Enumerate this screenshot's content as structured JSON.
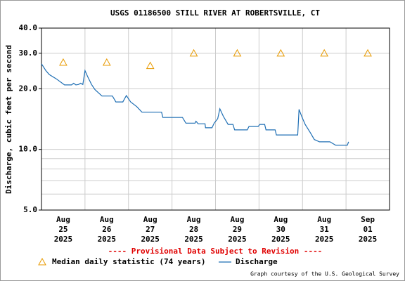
{
  "chart_data": {
    "type": "line",
    "title": "USGS 01186500 STILL RIVER AT ROBERTSVILLE, CT",
    "y_label": "Discharge, cubic feet per second",
    "notice": "---- Provisional Data Subject to Revision ----",
    "credit": "Graph courtesy of the U.S. Geological Survey",
    "log_y": true,
    "grid": true,
    "xlim": [
      0,
      8
    ],
    "xticks": [
      {
        "value": 0.5,
        "label": "Aug\n25\n2025"
      },
      {
        "value": 1.5,
        "label": "Aug\n26\n2025"
      },
      {
        "value": 2.5,
        "label": "Aug\n27\n2025"
      },
      {
        "value": 3.5,
        "label": "Aug\n28\n2025"
      },
      {
        "value": 4.5,
        "label": "Aug\n29\n2025"
      },
      {
        "value": 5.5,
        "label": "Aug\n30\n2025"
      },
      {
        "value": 6.5,
        "label": "Aug\n31\n2025"
      },
      {
        "value": 7.5,
        "label": "Sep\n01\n2025"
      }
    ],
    "xgrid": [
      1,
      2,
      3,
      4,
      5,
      6,
      7
    ],
    "ylim": [
      5,
      40
    ],
    "yticks": [
      {
        "value": 5,
        "label": "5.0"
      },
      {
        "value": 10,
        "label": "10.0"
      },
      {
        "value": 20,
        "label": "20.0"
      },
      {
        "value": 30,
        "label": "30.0"
      },
      {
        "value": 40,
        "label": "40.0"
      }
    ],
    "yminor": [
      6,
      7,
      8,
      9
    ],
    "series": [
      {
        "name": "Median daily statistic (74 years)",
        "color": "#e89a00",
        "marker": "triangle",
        "x": [
          0.5,
          1.5,
          2.5,
          3.5,
          4.5,
          5.5,
          6.5,
          7.5
        ],
        "values": [
          27,
          27,
          26,
          30,
          30,
          30,
          30,
          30
        ]
      },
      {
        "name": "Discharge",
        "color": "#1f6fb4",
        "marker": "none",
        "x": [
          0,
          0.1,
          0.18,
          0.34,
          0.53,
          0.69,
          0.74,
          0.79,
          0.85,
          0.9,
          0.95,
          1.0,
          1.06,
          1.15,
          1.23,
          1.39,
          1.63,
          1.71,
          1.87,
          1.95,
          2.05,
          2.19,
          2.31,
          2.76,
          2.79,
          3.24,
          3.32,
          3.53,
          3.55,
          3.6,
          3.76,
          3.77,
          3.92,
          3.97,
          4.05,
          4.1,
          4.18,
          4.29,
          4.4,
          4.44,
          4.73,
          4.77,
          4.98,
          5.02,
          5.13,
          5.16,
          5.37,
          5.4,
          5.89,
          5.92,
          5.98,
          6.06,
          6.18,
          6.27,
          6.39,
          6.63,
          6.76,
          7.03,
          7.06
        ],
        "values": [
          26.6,
          24.6,
          23.5,
          22.4,
          20.9,
          20.9,
          21.3,
          20.9,
          21.0,
          21.3,
          21.0,
          24.6,
          23.0,
          21.0,
          19.8,
          18.4,
          18.4,
          17.2,
          17.2,
          18.5,
          17.2,
          16.3,
          15.3,
          15.3,
          14.4,
          14.4,
          13.5,
          13.5,
          13.8,
          13.4,
          13.4,
          12.8,
          12.8,
          13.5,
          14.2,
          15.9,
          14.6,
          13.3,
          13.3,
          12.5,
          12.5,
          13.0,
          13.0,
          13.3,
          13.3,
          12.5,
          12.5,
          11.8,
          11.8,
          15.8,
          14.6,
          13.3,
          12.1,
          11.2,
          10.9,
          10.9,
          10.5,
          10.5,
          10.9
        ]
      }
    ]
  }
}
